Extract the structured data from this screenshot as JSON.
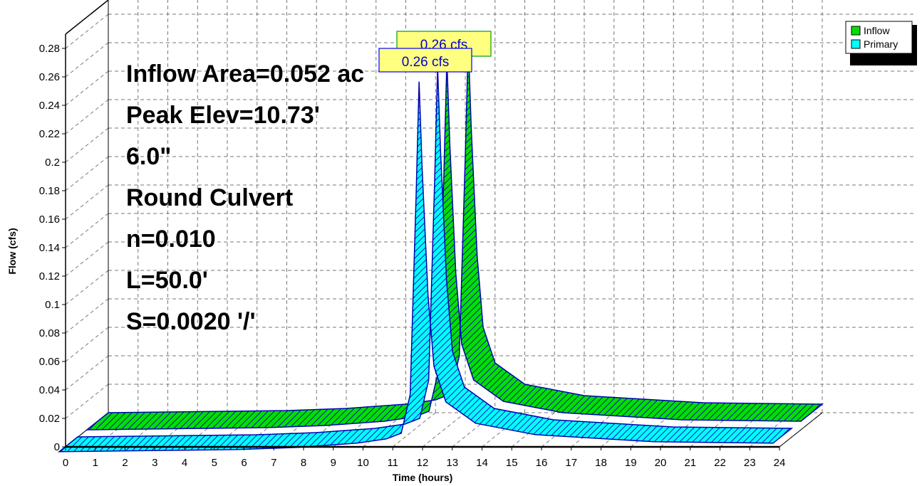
{
  "chart_data": {
    "type": "area",
    "xlabel": "Time  (hours)",
    "ylabel": "Flow  (cfs)",
    "xlim": [
      0,
      24
    ],
    "ylim": [
      0,
      0.28
    ],
    "x_ticks": [
      0,
      1,
      2,
      3,
      4,
      5,
      6,
      7,
      8,
      9,
      10,
      11,
      12,
      13,
      14,
      15,
      16,
      17,
      18,
      19,
      20,
      21,
      22,
      23,
      24
    ],
    "y_ticks": [
      "0",
      "0.02",
      "0.04",
      "0.06",
      "0.08",
      "0.1",
      "0.12",
      "0.14",
      "0.16",
      "0.18",
      "0.2",
      "0.22",
      "0.24",
      "0.26",
      "0.28"
    ],
    "grid": true,
    "legend_position": "top-right",
    "info_lines": [
      "Inflow Area=0.052 ac",
      "Peak Elev=10.73'",
      "6.0\"",
      "Round Culvert",
      "n=0.010",
      "L=50.0'",
      "S=0.0020 '/'"
    ],
    "series": [
      {
        "name": "Inflow",
        "color": "#00e000",
        "peak_label": "0.26 cfs",
        "x": [
          0,
          2,
          4,
          6,
          8,
          10,
          11,
          11.5,
          11.8,
          12,
          12.1,
          12.2,
          12.4,
          12.6,
          13,
          14,
          16,
          20,
          24
        ],
        "y": [
          0,
          0.0005,
          0.001,
          0.0015,
          0.003,
          0.006,
          0.009,
          0.013,
          0.04,
          0.18,
          0.26,
          0.2,
          0.11,
          0.06,
          0.035,
          0.02,
          0.012,
          0.007,
          0.006
        ]
      },
      {
        "name": "Primary",
        "color": "#00ffff",
        "peak_label": "0.26 cfs",
        "x": [
          0,
          2,
          4,
          6,
          8,
          10,
          11,
          11.5,
          11.8,
          12,
          12.1,
          12.2,
          12.4,
          12.6,
          13,
          14,
          16,
          20,
          24
        ],
        "y": [
          0,
          0.0005,
          0.001,
          0.0015,
          0.003,
          0.006,
          0.009,
          0.013,
          0.04,
          0.18,
          0.26,
          0.2,
          0.11,
          0.06,
          0.035,
          0.02,
          0.012,
          0.007,
          0.006
        ]
      }
    ]
  }
}
